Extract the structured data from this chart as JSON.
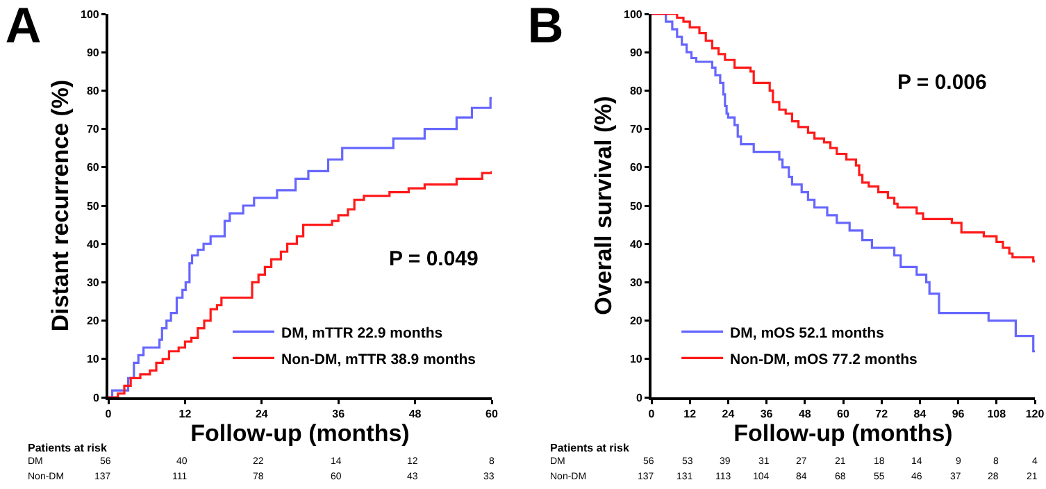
{
  "chart_data": [
    {
      "type": "step",
      "title": "A",
      "xlabel": "Follow-up (months)",
      "ylabel": "Distant recurrence (%)",
      "xlim": [
        0,
        60
      ],
      "xticks": [
        0,
        12,
        24,
        36,
        48,
        60
      ],
      "ylim": [
        0,
        100
      ],
      "yticks": [
        0,
        10,
        20,
        30,
        40,
        50,
        60,
        70,
        80,
        90,
        100
      ],
      "grid": false,
      "legend": "bottom right",
      "series": [
        {
          "name": "DM, mTTR 22.9 months",
          "color": "#6666ff",
          "x": [
            0,
            0.6,
            3.1,
            4,
            4.7,
            5.5,
            8,
            8.4,
            9.1,
            9.8,
            10.7,
            11.6,
            12.1,
            12.7,
            13.1,
            14,
            14.9,
            16,
            18.2,
            19,
            21.1,
            22.8,
            26.4,
            29.3,
            31.3,
            34.4,
            36.6,
            44.6,
            49.5,
            54.5,
            56.9,
            59.8,
            60
          ],
          "values": [
            0,
            1.8,
            5,
            9,
            11,
            13,
            15,
            18,
            20,
            22,
            26,
            28,
            30,
            35,
            37,
            38.5,
            40,
            42,
            46,
            48,
            50,
            52,
            54,
            57,
            59,
            62,
            65,
            67.5,
            70,
            73,
            75.5,
            78,
            78
          ]
        },
        {
          "name": "Non-DM, mTTR 38.9 months",
          "color": "#ff1a1a",
          "x": [
            0,
            1.5,
            2.5,
            3.5,
            5,
            6.5,
            7.5,
            8.5,
            9.5,
            11,
            12,
            13,
            14,
            15,
            16,
            17,
            17.7,
            22.5,
            23.5,
            24.5,
            25.5,
            27,
            28,
            29.5,
            30.5,
            35,
            36,
            37.5,
            38.5,
            40,
            44,
            47,
            49.5,
            54.5,
            58.5,
            60
          ],
          "values": [
            0,
            1,
            3,
            5,
            6,
            7,
            9,
            10,
            12,
            13,
            14.5,
            15.5,
            18,
            20,
            23,
            24,
            26,
            30,
            32,
            34,
            36,
            38,
            40,
            42,
            45,
            46,
            47.5,
            49,
            51.5,
            52.5,
            53.5,
            54.5,
            55.5,
            57,
            58.5,
            59
          ]
        }
      ],
      "annotations": [
        "P = 0.049",
        "Patients at risk",
        "DM",
        "56",
        "40",
        "22",
        "14",
        "12",
        "8",
        "Non-DM",
        "137",
        "111",
        "78",
        "60",
        "43",
        "33"
      ]
    },
    {
      "type": "step",
      "title": "B",
      "xlabel": "Follow-up (months)",
      "ylabel": "Overall survival (%)",
      "xlim": [
        0,
        120
      ],
      "xticks": [
        0,
        12,
        24,
        36,
        48,
        60,
        72,
        84,
        96,
        108,
        120
      ],
      "ylim": [
        0,
        100
      ],
      "yticks": [
        0,
        10,
        20,
        30,
        40,
        50,
        60,
        70,
        80,
        90,
        100
      ],
      "grid": false,
      "legend": "bottom left",
      "series": [
        {
          "name": "DM, mOS 52.1 months",
          "color": "#6666ff",
          "x": [
            0,
            4.5,
            6.5,
            8,
            9.5,
            11,
            12.5,
            14,
            19,
            20,
            21.5,
            22.5,
            23,
            23.5,
            24,
            26,
            27,
            28,
            32,
            40,
            41,
            43,
            44,
            47,
            49,
            51,
            55,
            58,
            62,
            66,
            69,
            76,
            78,
            83,
            86,
            87,
            90,
            105.5,
            114,
            119.5,
            120
          ],
          "values": [
            100,
            98,
            96,
            94,
            92,
            90,
            88.5,
            87.5,
            86,
            84,
            82,
            79,
            76,
            74,
            73,
            71,
            68,
            66,
            64,
            62,
            60,
            57.5,
            55.5,
            53.5,
            51.5,
            49.5,
            47.5,
            45.5,
            43.5,
            41,
            39,
            37,
            34,
            32,
            30,
            27,
            22,
            20,
            16,
            12,
            12
          ]
        },
        {
          "name": "Non-DM, mOS 77.2 months",
          "color": "#ff1a1a",
          "x": [
            0,
            8,
            10,
            12,
            15,
            17,
            19,
            21,
            23,
            26,
            31,
            32,
            37,
            38,
            40,
            42,
            44,
            46,
            49,
            51,
            54,
            56,
            58,
            61,
            64,
            65,
            66,
            68,
            71,
            74,
            76,
            77,
            83,
            85,
            94,
            97,
            104,
            108,
            110,
            112,
            113,
            119.5,
            120
          ],
          "values": [
            100,
            99,
            98,
            96.5,
            95,
            93,
            91,
            89.5,
            88,
            86,
            85,
            82,
            80,
            77,
            75,
            74,
            72,
            70.5,
            69,
            67.5,
            66.5,
            65,
            63.5,
            62,
            60.5,
            58,
            56,
            55,
            53.5,
            52,
            50.5,
            49.5,
            48,
            46.5,
            45.5,
            43,
            42,
            40.5,
            39,
            37.5,
            36.5,
            35.5,
            35.5
          ]
        }
      ],
      "annotations": [
        "P = 0.006",
        "Patients at risk",
        "DM",
        "56",
        "53",
        "39",
        "31",
        "27",
        "21",
        "18",
        "14",
        "9",
        "8",
        "4",
        "Non-DM",
        "137",
        "131",
        "113",
        "104",
        "84",
        "68",
        "55",
        "46",
        "37",
        "28",
        "21"
      ]
    }
  ]
}
